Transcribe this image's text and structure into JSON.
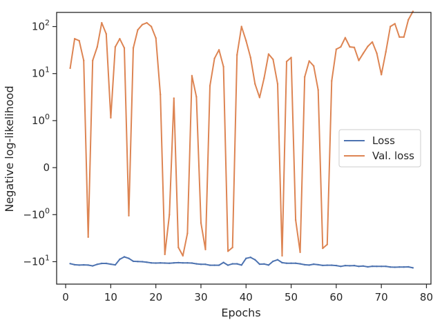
{
  "chart_data": {
    "type": "line",
    "title": "",
    "xlabel": "Epochs",
    "ylabel": "Negative log-likelihood",
    "yscale": "symlog",
    "xlim": [
      -2,
      81
    ],
    "ylim": [
      -30,
      200
    ],
    "x_ticks": [
      {
        "value": 0,
        "label": "0"
      },
      {
        "value": 10,
        "label": "10"
      },
      {
        "value": 20,
        "label": "20"
      },
      {
        "value": 30,
        "label": "30"
      },
      {
        "value": 40,
        "label": "40"
      },
      {
        "value": 50,
        "label": "50"
      },
      {
        "value": 60,
        "label": "60"
      },
      {
        "value": 70,
        "label": "70"
      },
      {
        "value": 80,
        "label": "80"
      }
    ],
    "y_ticks": [
      {
        "value": 100,
        "base": "10",
        "exp": "2",
        "sign": ""
      },
      {
        "value": 10,
        "base": "10",
        "exp": "1",
        "sign": ""
      },
      {
        "value": 1,
        "base": "10",
        "exp": "0",
        "sign": ""
      },
      {
        "value": 0,
        "base": "0",
        "exp": "",
        "sign": ""
      },
      {
        "value": -1,
        "base": "10",
        "exp": "0",
        "sign": "−"
      },
      {
        "value": -10,
        "base": "10",
        "exp": "1",
        "sign": "−"
      }
    ],
    "grid": false,
    "legend_position": "center-right",
    "series": [
      {
        "name": "Loss",
        "color": "#4c72b0",
        "x": [
          1,
          2,
          3,
          4,
          5,
          6,
          7,
          8,
          9,
          10,
          11,
          12,
          13,
          14,
          15,
          16,
          17,
          18,
          19,
          20,
          21,
          22,
          23,
          24,
          25,
          26,
          27,
          28,
          29,
          30,
          31,
          32,
          33,
          34,
          35,
          36,
          37,
          38,
          39,
          40,
          41,
          42,
          43,
          44,
          45,
          46,
          47,
          48,
          49,
          50,
          51,
          52,
          53,
          54,
          55,
          56,
          57,
          58,
          59,
          60,
          61,
          62,
          63,
          64,
          65,
          66,
          67,
          68,
          69,
          70,
          71,
          72,
          73,
          74,
          75,
          76,
          77
        ],
        "y": [
          -11,
          -11.6,
          -11.8,
          -11.7,
          -11.8,
          -12.3,
          -11.4,
          -10.9,
          -10.9,
          -11.3,
          -11.7,
          -8.9,
          -7.9,
          -8.5,
          -9.8,
          -9.9,
          -10,
          -10.3,
          -10.6,
          -10.7,
          -10.6,
          -10.7,
          -10.8,
          -10.6,
          -10.5,
          -10.6,
          -10.6,
          -10.7,
          -11.1,
          -11.4,
          -11.4,
          -11.9,
          -11.9,
          -11.9,
          -10.4,
          -11.9,
          -11.1,
          -11.1,
          -11.8,
          -8.5,
          -8.1,
          -9.1,
          -11.3,
          -11.2,
          -11.8,
          -9.8,
          -9.1,
          -10.5,
          -10.8,
          -10.8,
          -10.8,
          -11.1,
          -11.6,
          -11.8,
          -11.3,
          -11.6,
          -12,
          -11.9,
          -11.9,
          -12.1,
          -12.6,
          -12.1,
          -12.2,
          -12.1,
          -12.6,
          -12.4,
          -12.9,
          -12.5,
          -12.6,
          -12.6,
          -12.6,
          -13,
          -13.1,
          -13,
          -13,
          -12.9,
          -13.5
        ]
      },
      {
        "name": "Val. loss",
        "color": "#dd8452",
        "x": [
          1,
          2,
          3,
          4,
          5,
          6,
          7,
          8,
          9,
          10,
          11,
          12,
          13,
          14,
          15,
          16,
          17,
          18,
          19,
          20,
          21,
          22,
          23,
          24,
          25,
          26,
          27,
          28,
          29,
          30,
          31,
          32,
          33,
          34,
          35,
          36,
          37,
          38,
          39,
          40,
          41,
          42,
          43,
          44,
          45,
          46,
          47,
          48,
          49,
          50,
          51,
          52,
          53,
          54,
          55,
          56,
          57,
          58,
          59,
          60,
          61,
          62,
          63,
          64,
          65,
          66,
          67,
          68,
          69,
          70,
          71,
          72,
          73,
          74,
          75,
          76,
          77
        ],
        "y": [
          13,
          55,
          50,
          19,
          -3,
          19,
          37,
          120,
          70,
          1.15,
          37,
          55,
          35,
          -1.05,
          35,
          85,
          110,
          120,
          100,
          57,
          3.6,
          -7,
          -1,
          3,
          -5,
          -7.5,
          -2.5,
          9,
          3.2,
          -1.5,
          -5.5,
          5.5,
          21,
          32,
          14,
          -6,
          -5,
          25,
          100,
          50,
          22,
          6,
          3.1,
          8,
          26,
          20,
          6,
          -7.5,
          18,
          22,
          -1.3,
          -6.3,
          8.5,
          18.5,
          14.5,
          4.5,
          -5.2,
          -4.3,
          7,
          33,
          37,
          58,
          37,
          36,
          19,
          27,
          38,
          47,
          27,
          9.5,
          29,
          100,
          115,
          60,
          60,
          140,
          210
        ]
      }
    ]
  }
}
